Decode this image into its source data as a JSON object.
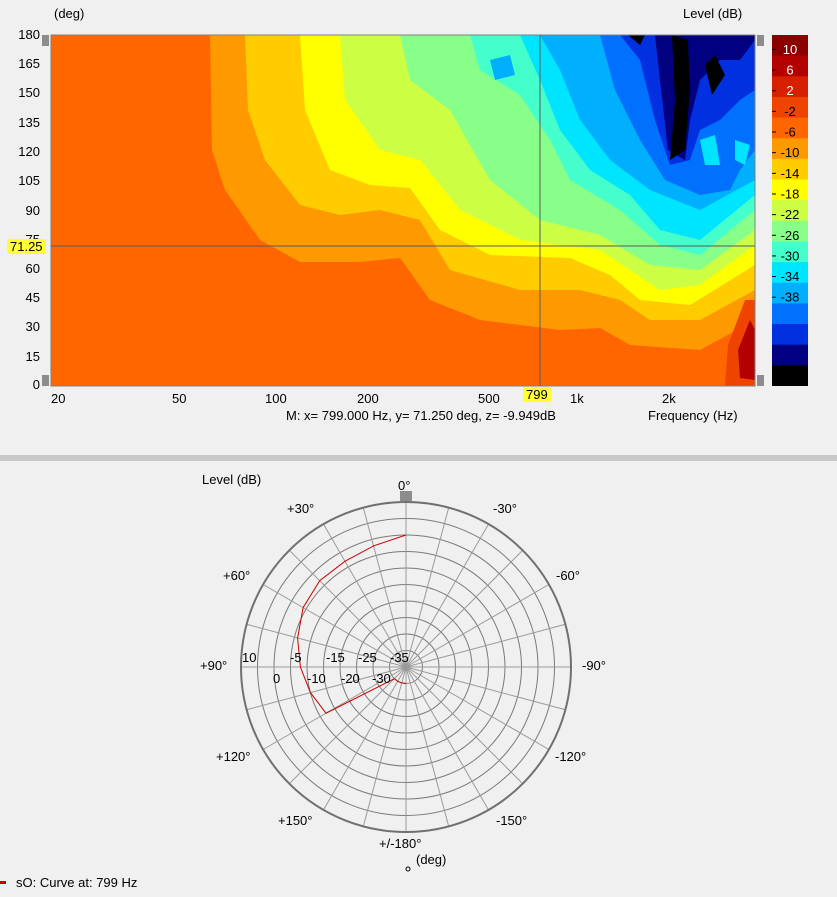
{
  "contour": {
    "y_unit": "(deg)",
    "level_unit": "Level  (dB)",
    "y_ticks": [
      "180",
      "165",
      "150",
      "135",
      "120",
      "105",
      "90",
      "75",
      "60",
      "45",
      "30",
      "15",
      "0"
    ],
    "x_ticks": [
      "20",
      "50",
      "100",
      "200",
      "500",
      "1k",
      "2k"
    ],
    "x_unit": "Frequency  (Hz)",
    "cursor_y_label": "71.25",
    "cursor_x_label": "799",
    "marker_readout": "M:  x= 799.000 Hz,  y= 71.250 deg, z= -9.949dB"
  },
  "colorbar": {
    "labels": [
      "10",
      "6",
      "2",
      "-2",
      "-6",
      "-10",
      "-14",
      "-18",
      "-22",
      "-26",
      "-30",
      "-34",
      "-38"
    ],
    "colors": [
      "#8b0000",
      "#b30000",
      "#d62000",
      "#ee4400",
      "#ff6600",
      "#ff9900",
      "#ffcc00",
      "#ffff00",
      "#ccff44",
      "#88ff88",
      "#44ffcc",
      "#00e5ff",
      "#00b0ff",
      "#0070ff",
      "#0030e0",
      "#000080",
      "#000000"
    ]
  },
  "polar": {
    "level_unit": "Level  (dB)",
    "angle_labels": {
      "top": "0°",
      "n30": "-30°",
      "n60": "-60°",
      "n90": "-90°",
      "n120": "-120°",
      "n150": "-150°",
      "bottom": "+/-180°",
      "p150": "+150°",
      "p120": "+120°",
      "p90": "+90°",
      "p60": "+60°",
      "p30": "+30°"
    },
    "ring_labels_upper": [
      "10",
      "-5",
      "-15",
      "-25",
      "-35"
    ],
    "ring_labels_lower": [
      "0",
      "-10",
      "-20",
      "-30"
    ],
    "deg_unit": "(deg)",
    "legend": "sO: Curve at: 799 Hz"
  },
  "chart_data": [
    {
      "type": "heatmap",
      "title": "",
      "xlabel": "Frequency (Hz)",
      "ylabel": "(deg)",
      "x_scale": "log",
      "xlim": [
        16,
        3300
      ],
      "ylim": [
        0,
        180
      ],
      "zlabel": "Level (dB)",
      "zlim": [
        -40,
        12
      ],
      "cursor": {
        "x": 799,
        "y": 71.25,
        "z": -9.949
      },
      "freq_hz": [
        20,
        50,
        100,
        200,
        400,
        800,
        1600,
        2400,
        3200
      ],
      "angles_deg": [
        0,
        30,
        60,
        90,
        120,
        150,
        180
      ],
      "levels_db": [
        [
          0,
          0,
          0,
          -1,
          -1,
          -3,
          -6,
          -5,
          8
        ],
        [
          0,
          0,
          0,
          -1,
          -1,
          -4,
          -12,
          -10,
          2
        ],
        [
          0,
          0,
          -1,
          -2,
          -5,
          -12,
          -18,
          -18,
          -14
        ],
        [
          0,
          0,
          -2,
          -5,
          -10,
          -16,
          -24,
          -30,
          -22
        ],
        [
          0,
          0,
          -3,
          -8,
          -14,
          -20,
          -30,
          -40,
          -24
        ],
        [
          0,
          0,
          -4,
          -9,
          -18,
          -24,
          -28,
          -38,
          -30
        ],
        [
          0,
          0,
          -4,
          -9,
          -16,
          -22,
          -26,
          -34,
          -26
        ]
      ]
    },
    {
      "type": "line",
      "subtype": "polar",
      "title": "",
      "series": [
        {
          "name": "sO: Curve at: 799 Hz",
          "angles_deg": [
            0,
            15,
            30,
            45,
            60,
            75,
            90,
            105,
            120,
            135,
            150,
            165,
            180
          ],
          "level_db": [
            0,
            -2,
            -3,
            -3,
            -4,
            -6,
            -8,
            -10,
            -12,
            -35,
            -35,
            -35,
            -35
          ]
        }
      ],
      "r_range_db": [
        -40,
        10
      ],
      "ring_step_db": 5,
      "zero_angle": "top",
      "positive_angles": "counter-clockwise"
    }
  ]
}
